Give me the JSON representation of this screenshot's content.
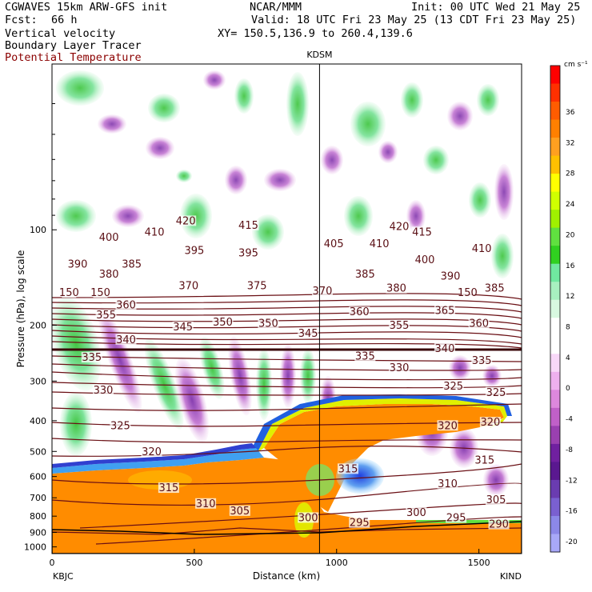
{
  "header": {
    "model": "CGWAVES 15km ARW-GFS init",
    "center": "NCAR/MMM",
    "init": "Init: 00 UTC Wed 21 May 25",
    "fcst_label": "Fcst:",
    "fcst_value": "66 h",
    "valid": "Valid: 18 UTC Fri 23 May 25 (13 CDT Fri 23 May 25)",
    "field1": "Vertical velocity",
    "field2": "Boundary Layer Tracer",
    "field3": "Potential Temperature",
    "xy": "XY= 150.5,136.9 to 260.4,139.6"
  },
  "chart_data": {
    "type": "heatmap",
    "station_marker": {
      "label": "KDSM",
      "x": 940
    },
    "xlabel": "Distance (km)",
    "ylabel": "Pressure (hPa), log scale",
    "x_ticks": [
      0,
      500,
      1000,
      1500
    ],
    "xlim": [
      0,
      1650
    ],
    "x_endpoints": {
      "left": "KBJC",
      "right": "KIND"
    },
    "y_ticks": [
      100,
      200,
      300,
      400,
      500,
      600,
      700,
      800,
      900,
      1000
    ],
    "y_scale": "log",
    "ylim": [
      1050,
      30
    ],
    "colorbar": {
      "unit": "cm s⁻¹",
      "labels": [
        36,
        32,
        28,
        24,
        20,
        16,
        12,
        8,
        4,
        0,
        -4,
        -8,
        -12,
        -16,
        -20
      ],
      "colors": [
        "#ff0000",
        "#ff3000",
        "#ff5c00",
        "#ff8000",
        "#ffa020",
        "#ffc000",
        "#ffff00",
        "#d0ff00",
        "#a0f000",
        "#60e040",
        "#30d020",
        "#70e8a0",
        "#a8f0c0",
        "#d8f8e0",
        "#ffffff",
        "#ffffff",
        "#f8d8f8",
        "#eeb0ee",
        "#dd88dd",
        "#c060c8",
        "#9a40b0",
        "#7020a0",
        "#5a1890",
        "#6a3cb0",
        "#7a60d0",
        "#8c88e8",
        "#a8a8f8"
      ]
    },
    "theta_labels": [
      {
        "t": "420",
        "x": 470,
        "p": 95
      },
      {
        "t": "415",
        "x": 690,
        "p": 98
      },
      {
        "t": "415",
        "x": 1300,
        "p": 103
      },
      {
        "t": "410",
        "x": 360,
        "p": 103
      },
      {
        "t": "410",
        "x": 1150,
        "p": 112
      },
      {
        "t": "410",
        "x": 1510,
        "p": 116
      },
      {
        "t": "420",
        "x": 1220,
        "p": 99
      },
      {
        "t": "405",
        "x": 990,
        "p": 112
      },
      {
        "t": "400",
        "x": 200,
        "p": 107
      },
      {
        "t": "400",
        "x": 1310,
        "p": 126
      },
      {
        "t": "395",
        "x": 500,
        "p": 118
      },
      {
        "t": "395",
        "x": 690,
        "p": 120
      },
      {
        "t": "390",
        "x": 90,
        "p": 130
      },
      {
        "t": "390",
        "x": 1400,
        "p": 142
      },
      {
        "t": "385",
        "x": 280,
        "p": 130
      },
      {
        "t": "385",
        "x": 1100,
        "p": 140
      },
      {
        "t": "385",
        "x": 1555,
        "p": 155
      },
      {
        "t": "380",
        "x": 200,
        "p": 140
      },
      {
        "t": "380",
        "x": 1210,
        "p": 155
      },
      {
        "t": "375",
        "x": 720,
        "p": 152
      },
      {
        "t": "370",
        "x": 480,
        "p": 152
      },
      {
        "t": "370",
        "x": 950,
        "p": 158
      },
      {
        "t": "365",
        "x": 1380,
        "p": 182
      },
      {
        "t": "360",
        "x": 260,
        "p": 175
      },
      {
        "t": "360",
        "x": 1080,
        "p": 184
      },
      {
        "t": "360",
        "x": 1500,
        "p": 200
      },
      {
        "t": "355",
        "x": 190,
        "p": 188
      },
      {
        "t": "355",
        "x": 1220,
        "p": 203
      },
      {
        "t": "350",
        "x": 600,
        "p": 198
      },
      {
        "t": "350",
        "x": 760,
        "p": 200
      },
      {
        "t": "345",
        "x": 460,
        "p": 205
      },
      {
        "t": "345",
        "x": 900,
        "p": 215
      },
      {
        "t": "340",
        "x": 260,
        "p": 225
      },
      {
        "t": "340",
        "x": 1380,
        "p": 240
      },
      {
        "t": "335",
        "x": 140,
        "p": 256
      },
      {
        "t": "335",
        "x": 1100,
        "p": 254
      },
      {
        "t": "335",
        "x": 1510,
        "p": 262
      },
      {
        "t": "330",
        "x": 180,
        "p": 325
      },
      {
        "t": "330",
        "x": 1220,
        "p": 276
      },
      {
        "t": "325",
        "x": 240,
        "p": 420
      },
      {
        "t": "325",
        "x": 1410,
        "p": 315
      },
      {
        "t": "325",
        "x": 1560,
        "p": 330
      },
      {
        "t": "320",
        "x": 350,
        "p": 508
      },
      {
        "t": "320",
        "x": 1390,
        "p": 420
      },
      {
        "t": "320",
        "x": 1540,
        "p": 410
      },
      {
        "t": "315",
        "x": 410,
        "p": 660
      },
      {
        "t": "315",
        "x": 1520,
        "p": 540
      },
      {
        "t": "315",
        "x": 1040,
        "p": 575
      },
      {
        "t": "310",
        "x": 540,
        "p": 740
      },
      {
        "t": "310",
        "x": 1390,
        "p": 640
      },
      {
        "t": "305",
        "x": 660,
        "p": 780
      },
      {
        "t": "305",
        "x": 1560,
        "p": 720
      },
      {
        "t": "300",
        "x": 900,
        "p": 820
      },
      {
        "t": "300",
        "x": 1280,
        "p": 790
      },
      {
        "t": "295",
        "x": 1080,
        "p": 850
      },
      {
        "t": "295",
        "x": 1420,
        "p": 820
      },
      {
        "t": "290",
        "x": 1570,
        "p": 860
      },
      {
        "t": "150",
        "x": 60,
        "p": 160
      },
      {
        "t": "150",
        "x": 170,
        "p": 160
      },
      {
        "t": "150",
        "x": 1460,
        "p": 160
      }
    ]
  }
}
